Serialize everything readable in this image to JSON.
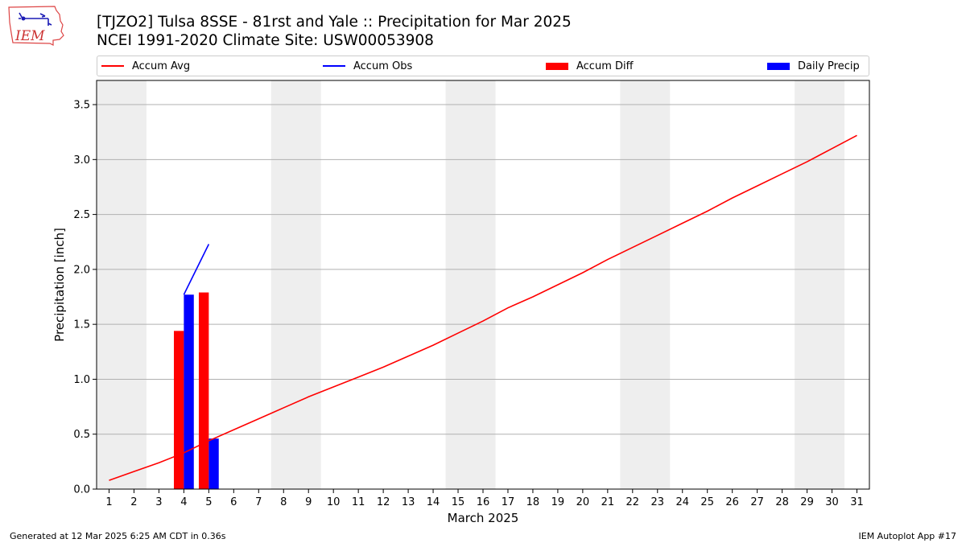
{
  "logo": {
    "text": "IEM",
    "icon": "iem-iowa-logo"
  },
  "title_line1": "[TJZO2] Tulsa 8SSE - 81rst and Yale :: Precipitation for Mar 2025",
  "title_line2": "NCEI 1991-2020 Climate Site: USW00053908",
  "footer_left": "Generated at 12 Mar 2025 6:25 AM CDT in 0.36s",
  "footer_right": "IEM Autoplot App #17",
  "colors": {
    "accum_avg": "#ff0000",
    "accum_obs": "#0000ff",
    "accum_diff": "#ff0000",
    "daily_precip": "#0000ff",
    "weekend_band": "#eeeeee",
    "grid": "#b0b0b0"
  },
  "chart_data": {
    "type": "bar",
    "xlabel": "March 2025",
    "ylabel": "Precipitation [inch]",
    "xlim": [
      0.5,
      31.5
    ],
    "ylim": [
      0,
      3.72
    ],
    "x_ticks": [
      1,
      2,
      3,
      4,
      5,
      6,
      7,
      8,
      9,
      10,
      11,
      12,
      13,
      14,
      15,
      16,
      17,
      18,
      19,
      20,
      21,
      22,
      23,
      24,
      25,
      26,
      27,
      28,
      29,
      30,
      31
    ],
    "y_ticks": [
      0.0,
      0.5,
      1.0,
      1.5,
      2.0,
      2.5,
      3.0,
      3.5
    ],
    "y_tick_labels": [
      "0.0",
      "0.5",
      "1.0",
      "1.5",
      "2.0",
      "2.5",
      "3.0",
      "3.5"
    ],
    "grid": "horizontal",
    "legend_placement": "top",
    "weekend_bands": [
      [
        1,
        2
      ],
      [
        8,
        9
      ],
      [
        15,
        16
      ],
      [
        22,
        23
      ],
      [
        29,
        30
      ]
    ],
    "series": [
      {
        "name": "Accum Avg",
        "kind": "line",
        "x": [
          1,
          2,
          3,
          4,
          5,
          6,
          7,
          8,
          9,
          10,
          11,
          12,
          13,
          14,
          15,
          16,
          17,
          18,
          19,
          20,
          21,
          22,
          23,
          24,
          25,
          26,
          27,
          28,
          29,
          30,
          31
        ],
        "values": [
          0.08,
          0.16,
          0.24,
          0.33,
          0.44,
          0.54,
          0.64,
          0.74,
          0.84,
          0.93,
          1.02,
          1.11,
          1.21,
          1.31,
          1.42,
          1.53,
          1.65,
          1.75,
          1.86,
          1.97,
          2.09,
          2.2,
          2.31,
          2.42,
          2.53,
          2.65,
          2.76,
          2.87,
          2.98,
          3.1,
          3.22
        ]
      },
      {
        "name": "Accum Obs",
        "kind": "line",
        "x": [
          4,
          5
        ],
        "values": [
          1.77,
          2.23
        ]
      },
      {
        "name": "Accum Diff",
        "kind": "bar",
        "offset": -0.2,
        "x": [
          4,
          5
        ],
        "values": [
          1.44,
          1.79
        ]
      },
      {
        "name": "Daily Precip",
        "kind": "bar",
        "offset": 0.2,
        "x": [
          4,
          5
        ],
        "values": [
          1.77,
          0.46
        ]
      }
    ]
  }
}
